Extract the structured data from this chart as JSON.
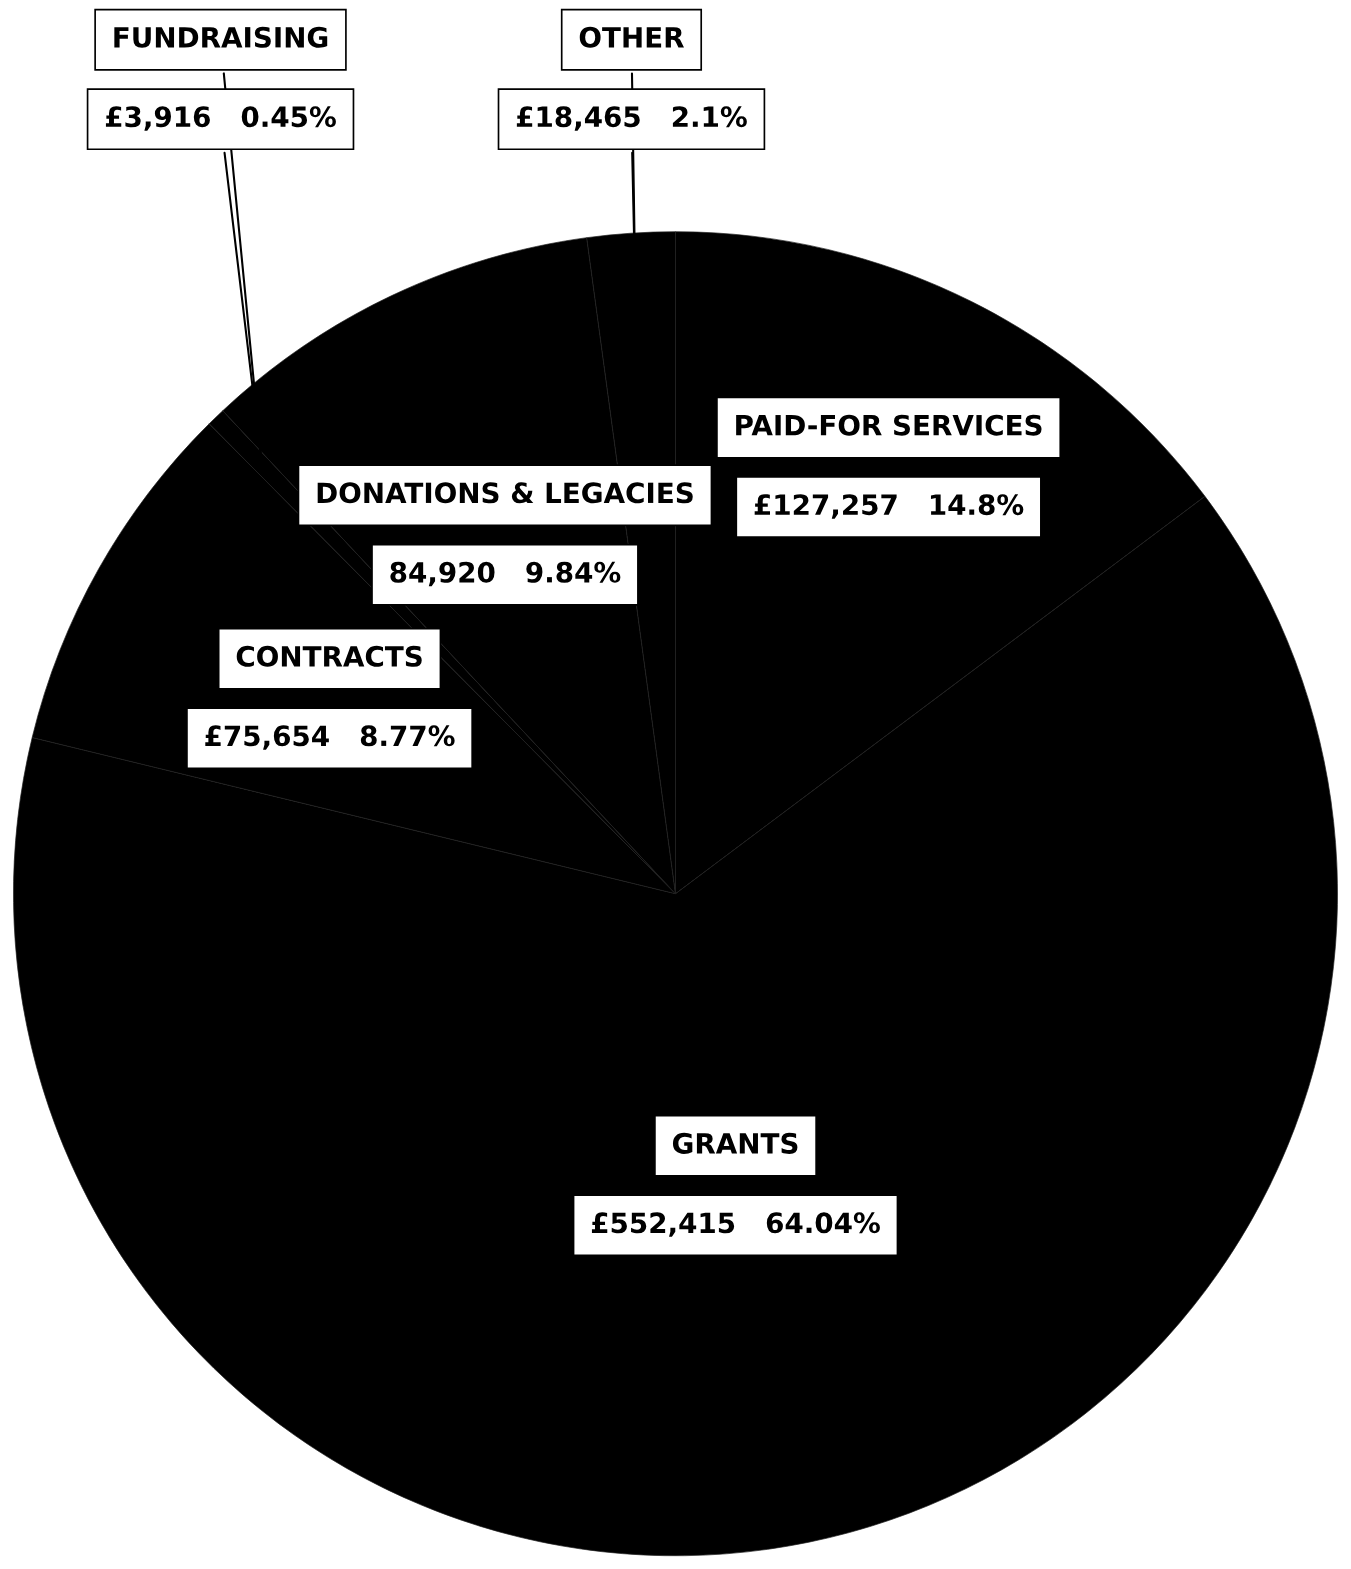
{
  "chart_data": {
    "type": "pie",
    "categories": [
      "PAID-FOR SERVICES",
      "GRANTS",
      "CONTRACTS",
      "FUNDRAISING",
      "DONATIONS & LEGACIES",
      "OTHER"
    ],
    "values": [
      127257,
      552415,
      75654,
      3916,
      84920,
      18465
    ],
    "value_labels": [
      "£127,257   14.8%",
      "£552,415   64.04%",
      "£75,654   8.77%",
      "£3,916   0.45%",
      "84,920   9.84%",
      "£18,465   2.1%"
    ],
    "colors": [
      "#000000",
      "#000000",
      "#000000",
      "#000000",
      "#000000",
      "#000000"
    ]
  }
}
